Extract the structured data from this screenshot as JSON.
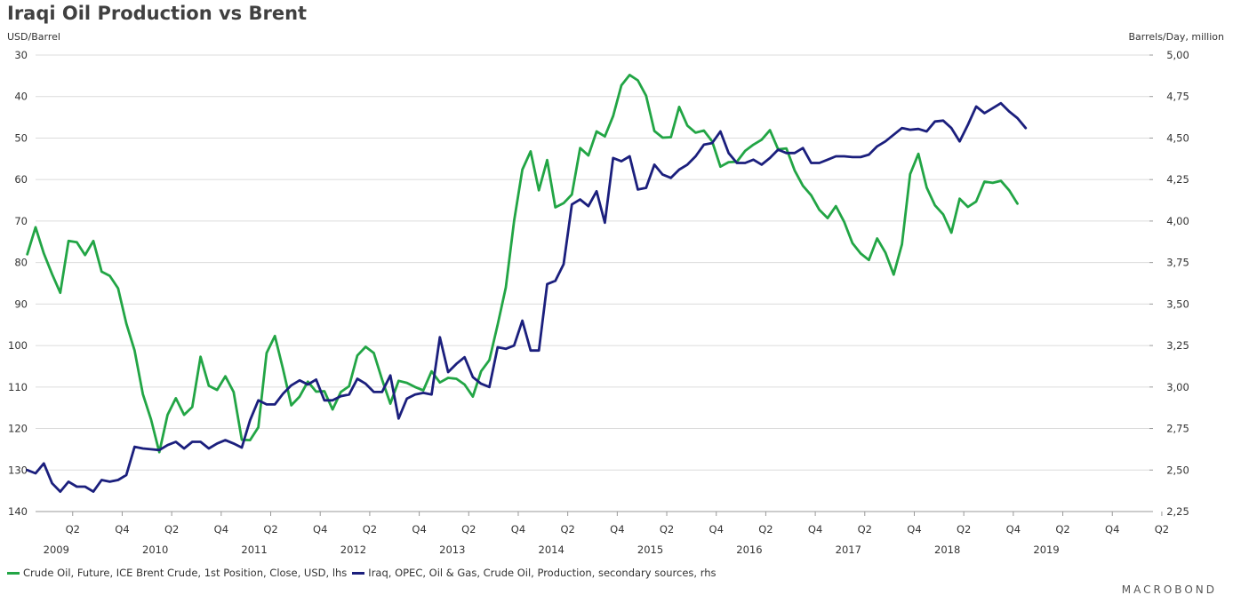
{
  "title": "Iraqi Oil Production vs Brent",
  "brand": "MACROBOND",
  "chart_data": {
    "type": "line",
    "title": "Iraqi Oil Production vs Brent",
    "ylabel_left": "USD/Barrel",
    "ylabel_right": "Barrels/Day, million",
    "left_axis": {
      "min": 30,
      "max": 140,
      "inverted": true,
      "ticks": [
        30,
        40,
        50,
        60,
        70,
        80,
        90,
        100,
        110,
        120,
        130,
        140
      ]
    },
    "right_axis": {
      "min": 2.25,
      "max": 5.0,
      "ticks": [
        "5,00",
        "4,75",
        "4,50",
        "4,25",
        "4,00",
        "3,75",
        "3,50",
        "3,25",
        "3,00",
        "2,75",
        "2,50",
        "2,25"
      ]
    },
    "x_axis": {
      "start": "2009-01",
      "end": "2020-04",
      "quarter_ticks": [
        "Q2",
        "Q4",
        "Q2",
        "Q4",
        "Q2",
        "Q4",
        "Q2",
        "Q4",
        "Q2",
        "Q4",
        "Q2",
        "Q4",
        "Q2",
        "Q4",
        "Q2",
        "Q4",
        "Q2",
        "Q4",
        "Q2",
        "Q4",
        "Q2",
        "Q4",
        "Q2"
      ],
      "years": [
        "2009",
        "2010",
        "2011",
        "2012",
        "2013",
        "2014",
        "2015",
        "2016",
        "2017",
        "2018",
        "2019"
      ]
    },
    "grid": true,
    "legend_position": "bottom-left",
    "series": [
      {
        "name": "Crude Oil, Future, ICE Brent Crude, 1st Position, Close, USD, lhs",
        "axis": "left",
        "color": "#22a545",
        "start": "2008-12",
        "values": [
          78,
          71.5,
          77.8,
          82.8,
          87.3,
          74.8,
          75.1,
          78.2,
          74.8,
          82.2,
          83.2,
          86.2,
          94.7,
          101.2,
          111.7,
          117.8,
          125.7,
          116.7,
          112.7,
          116.7,
          114.8,
          102.7,
          109.7,
          110.7,
          107.4,
          111.2,
          122.7,
          122.8,
          119.7,
          101.8,
          97.7,
          105.7,
          114.4,
          112.3,
          108.7,
          111.1,
          111.0,
          115.4,
          111.2,
          109.8,
          102.4,
          100.3,
          101.8,
          108.2,
          114.0,
          108.5,
          109.0,
          110.0,
          110.8,
          106.2,
          108.9,
          107.8,
          108.0,
          109.4,
          112.3,
          106.2,
          103.5,
          95.0,
          86.0,
          70.0,
          57.6,
          53.2,
          62.6,
          55.3,
          66.7,
          65.7,
          63.6,
          52.4,
          54.2,
          48.4,
          49.6,
          44.7,
          37.3,
          34.8,
          36.1,
          39.8,
          48.3,
          49.9,
          49.8,
          42.5,
          47.0,
          48.7,
          48.2,
          50.8,
          56.9,
          55.8,
          55.7,
          53.1,
          51.6,
          50.4,
          48.1,
          52.7,
          52.5,
          57.8,
          61.5,
          63.8,
          67.3,
          69.3,
          66.4,
          70.2,
          75.3,
          77.8,
          79.4,
          74.2,
          77.6,
          82.9,
          75.6,
          58.7,
          53.8,
          61.9,
          66.2,
          68.4,
          72.8,
          64.6,
          66.6,
          65.3,
          60.5,
          60.8,
          60.3,
          62.6,
          65.8
        ]
      },
      {
        "name": "Iraq, OPEC, Oil & Gas, Crude Oil, Production, secondary sources, rhs",
        "axis": "right",
        "color": "#1b1f7d",
        "start": "2008-12",
        "values": [
          2.5,
          2.48,
          2.54,
          2.42,
          2.37,
          2.43,
          2.4,
          2.4,
          2.37,
          2.44,
          2.43,
          2.44,
          2.47,
          2.64,
          2.63,
          2.625,
          2.62,
          2.65,
          2.67,
          2.63,
          2.67,
          2.67,
          2.63,
          2.66,
          2.68,
          2.66,
          2.635,
          2.8,
          2.92,
          2.895,
          2.895,
          2.96,
          3.01,
          3.04,
          3.015,
          3.045,
          2.92,
          2.92,
          2.945,
          2.955,
          3.05,
          3.02,
          2.97,
          2.97,
          3.07,
          2.81,
          2.93,
          2.955,
          2.965,
          2.955,
          3.3,
          3.09,
          3.14,
          3.18,
          3.06,
          3.02,
          3.0,
          3.24,
          3.23,
          3.25,
          3.4,
          3.22,
          3.22,
          3.62,
          3.64,
          3.74,
          4.1,
          4.13,
          4.09,
          4.18,
          3.99,
          4.38,
          4.36,
          4.39,
          4.19,
          4.2,
          4.34,
          4.28,
          4.26,
          4.31,
          4.34,
          4.39,
          4.46,
          4.47,
          4.54,
          4.41,
          4.35,
          4.35,
          4.37,
          4.34,
          4.38,
          4.43,
          4.41,
          4.41,
          4.44,
          4.35,
          4.35,
          4.37,
          4.39,
          4.39,
          4.385,
          4.385,
          4.4,
          4.45,
          4.48,
          4.52,
          4.56,
          4.55,
          4.555,
          4.54,
          4.6,
          4.605,
          4.56,
          4.48,
          4.58,
          4.69,
          4.65,
          4.68,
          4.71,
          4.66,
          4.62,
          4.56
        ]
      }
    ]
  }
}
